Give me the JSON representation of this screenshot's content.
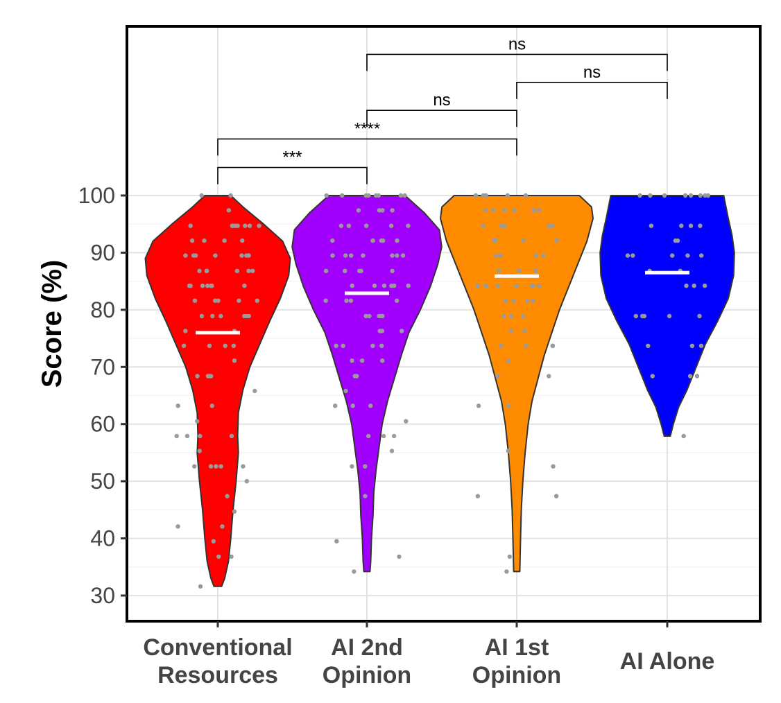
{
  "chart_data": {
    "type": "violin",
    "title": "",
    "xlabel": "",
    "ylabel": "Score (%)",
    "ylim": [
      30,
      100
    ],
    "yticks": [
      30,
      40,
      50,
      60,
      70,
      80,
      90,
      100
    ],
    "grid": true,
    "legend": "none",
    "groups": [
      {
        "label_lines": [
          "Conventional",
          "Resources"
        ],
        "color": "#FF0000",
        "mean": 76,
        "min": 31.6,
        "max": 100,
        "density": [
          [
            31.6,
            0.05
          ],
          [
            33,
            0.09
          ],
          [
            36,
            0.14
          ],
          [
            40,
            0.17
          ],
          [
            45,
            0.2
          ],
          [
            50,
            0.24
          ],
          [
            55,
            0.27
          ],
          [
            58,
            0.26
          ],
          [
            62,
            0.27
          ],
          [
            66,
            0.33
          ],
          [
            70,
            0.42
          ],
          [
            74,
            0.55
          ],
          [
            78,
            0.68
          ],
          [
            82,
            0.82
          ],
          [
            86,
            0.93
          ],
          [
            89,
            0.95
          ],
          [
            92,
            0.85
          ],
          [
            95,
            0.6
          ],
          [
            98,
            0.33
          ],
          [
            100,
            0.17
          ]
        ],
        "points": [
          100,
          100,
          97.4,
          94.7,
          94.7,
          94.7,
          94.7,
          94.7,
          94.7,
          94.7,
          94.7,
          92.1,
          92.1,
          92.1,
          92.1,
          89.5,
          89.5,
          89.5,
          89.5,
          89.5,
          89.5,
          89.5,
          86.8,
          86.8,
          86.8,
          86.8,
          86.8,
          86.8,
          84.2,
          84.2,
          84.2,
          84.2,
          84.2,
          84.2,
          84.2,
          81.6,
          81.6,
          81.6,
          81.6,
          81.6,
          78.9,
          78.9,
          78.9,
          78.9,
          78.9,
          78.9,
          76.3,
          76.3,
          73.7,
          73.7,
          73.7,
          73.7,
          71.1,
          68.4,
          68.4,
          68.4,
          68.4,
          65.8,
          63.2,
          63.2,
          60.5,
          57.9,
          57.9,
          57.9,
          57.9,
          55.3,
          52.6,
          52.6,
          52.6,
          52.6,
          52.6,
          50,
          47.4,
          44.7,
          42.1,
          42.1,
          39.5,
          36.8,
          36.8,
          31.6
        ]
      },
      {
        "label_lines": [
          "AI 2nd",
          "Opinion"
        ],
        "color": "#A100FF",
        "mean": 82.9,
        "min": 34.2,
        "max": 100,
        "density": [
          [
            34.2,
            0.04
          ],
          [
            36,
            0.05
          ],
          [
            40,
            0.06
          ],
          [
            44,
            0.08
          ],
          [
            48,
            0.09
          ],
          [
            52,
            0.12
          ],
          [
            56,
            0.16
          ],
          [
            60,
            0.2
          ],
          [
            64,
            0.27
          ],
          [
            68,
            0.36
          ],
          [
            72,
            0.45
          ],
          [
            76,
            0.55
          ],
          [
            80,
            0.7
          ],
          [
            84,
            0.83
          ],
          [
            88,
            0.93
          ],
          [
            91,
            0.98
          ],
          [
            94,
            0.95
          ],
          [
            97,
            0.75
          ],
          [
            100,
            0.5
          ]
        ],
        "points": [
          100,
          100,
          100,
          100,
          100,
          100,
          100,
          100,
          97.4,
          97.4,
          97.4,
          97.4,
          94.7,
          94.7,
          94.7,
          94.7,
          94.7,
          92.1,
          92.1,
          92.1,
          92.1,
          92.1,
          92.1,
          89.5,
          89.5,
          89.5,
          89.5,
          89.5,
          89.5,
          89.5,
          86.8,
          86.8,
          86.8,
          86.8,
          86.8,
          84.2,
          84.2,
          84.2,
          84.2,
          84.2,
          84.2,
          81.6,
          81.6,
          81.6,
          81.6,
          78.9,
          78.9,
          78.9,
          78.9,
          78.9,
          76.3,
          76.3,
          76.3,
          73.7,
          73.7,
          73.7,
          73.7,
          71.1,
          71.1,
          71.1,
          68.4,
          68.4,
          65.8,
          63.2,
          63.2,
          63.2,
          60.5,
          57.9,
          57.9,
          57.9,
          55.3,
          52.6,
          52.6,
          47.4,
          39.5,
          36.8,
          34.2
        ]
      },
      {
        "label_lines": [
          "AI 1st",
          "Opinion"
        ],
        "color": "#FF8C00",
        "mean": 85.9,
        "min": 34.2,
        "max": 100,
        "density": [
          [
            34.2,
            0.04
          ],
          [
            40,
            0.05
          ],
          [
            45,
            0.06
          ],
          [
            50,
            0.08
          ],
          [
            55,
            0.11
          ],
          [
            60,
            0.15
          ],
          [
            64,
            0.2
          ],
          [
            68,
            0.28
          ],
          [
            72,
            0.36
          ],
          [
            76,
            0.46
          ],
          [
            80,
            0.56
          ],
          [
            84,
            0.68
          ],
          [
            88,
            0.8
          ],
          [
            92,
            0.92
          ],
          [
            96,
            1.0
          ],
          [
            98,
            0.98
          ],
          [
            100,
            0.82
          ]
        ],
        "points": [
          100,
          100,
          100,
          100,
          100,
          100,
          97.4,
          97.4,
          97.4,
          97.4,
          97.4,
          97.4,
          97.4,
          94.7,
          94.7,
          94.7,
          94.7,
          94.7,
          92.1,
          92.1,
          92.1,
          92.1,
          92.1,
          89.5,
          89.5,
          89.5,
          89.5,
          86.8,
          86.8,
          86.8,
          86.8,
          84.2,
          84.2,
          84.2,
          84.2,
          84.2,
          84.2,
          84.2,
          84.2,
          81.6,
          81.6,
          81.6,
          81.6,
          78.9,
          78.9,
          78.9,
          76.3,
          76.3,
          73.7,
          73.7,
          73.7,
          73.7,
          71.1,
          68.4,
          68.4,
          63.2,
          63.2,
          55.3,
          52.6,
          47.4,
          47.4,
          36.8,
          34.2
        ]
      },
      {
        "label_lines": [
          "AI Alone"
        ],
        "color": "#0000FF",
        "mean": 86.5,
        "min": 57.9,
        "max": 100,
        "density": [
          [
            57.9,
            0.04
          ],
          [
            60,
            0.08
          ],
          [
            63,
            0.15
          ],
          [
            66,
            0.26
          ],
          [
            70,
            0.38
          ],
          [
            74,
            0.5
          ],
          [
            78,
            0.66
          ],
          [
            82,
            0.8
          ],
          [
            86,
            0.87
          ],
          [
            90,
            0.88
          ],
          [
            93,
            0.85
          ],
          [
            96,
            0.8
          ],
          [
            98,
            0.77
          ],
          [
            100,
            0.74
          ]
        ],
        "points": [
          100,
          100,
          100,
          100,
          100,
          100,
          100,
          100,
          94.7,
          94.7,
          94.7,
          94.7,
          92.1,
          92.1,
          89.5,
          89.5,
          89.5,
          89.5,
          89.5,
          86.8,
          86.8,
          84.2,
          84.2,
          84.2,
          78.9,
          78.9,
          78.9,
          78.9,
          78.9,
          73.7,
          73.7,
          73.7,
          68.4,
          68.4,
          68.4,
          57.9
        ]
      }
    ],
    "comparisons": [
      {
        "from": 0,
        "to": 1,
        "label": "***",
        "y": 104.9
      },
      {
        "from": 0,
        "to": 2,
        "label": "****",
        "y": 109.9
      },
      {
        "from": 1,
        "to": 2,
        "label": "ns",
        "y": 114.9
      },
      {
        "from": 2,
        "to": 3,
        "label": "ns",
        "y": 119.8
      },
      {
        "from": 1,
        "to": 3,
        "label": "ns",
        "y": 124.7
      }
    ]
  }
}
